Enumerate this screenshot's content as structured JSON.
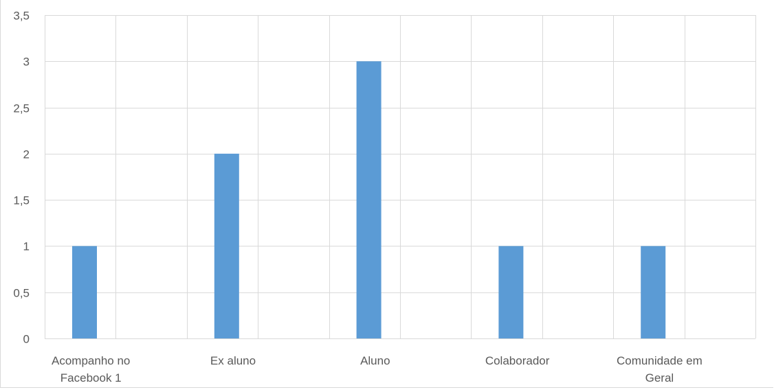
{
  "chart_data": {
    "type": "bar",
    "categories": [
      [
        "Acompanho no",
        "Facebook 1"
      ],
      [
        "Ex aluno"
      ],
      [
        "Aluno"
      ],
      [
        "Colaborador"
      ],
      [
        "Comunidade em",
        "Geral"
      ]
    ],
    "series": [
      {
        "values": [
          1,
          2,
          3,
          1,
          1
        ]
      }
    ],
    "ylim": [
      0,
      3.5
    ],
    "yticks": [
      "0",
      "0,5",
      "1",
      "1,5",
      "2",
      "2,5",
      "3",
      "3,5"
    ],
    "ytick_values": [
      0,
      0.5,
      1,
      1.5,
      2,
      2.5,
      3,
      3.5
    ],
    "title": "",
    "xlabel": "",
    "ylabel": "",
    "grid": true,
    "legend": "none",
    "colors": {
      "bar": "#5b9bd5",
      "grid": "#d9d9d9",
      "axis": "#d9d9d9",
      "text": "#595959"
    }
  }
}
